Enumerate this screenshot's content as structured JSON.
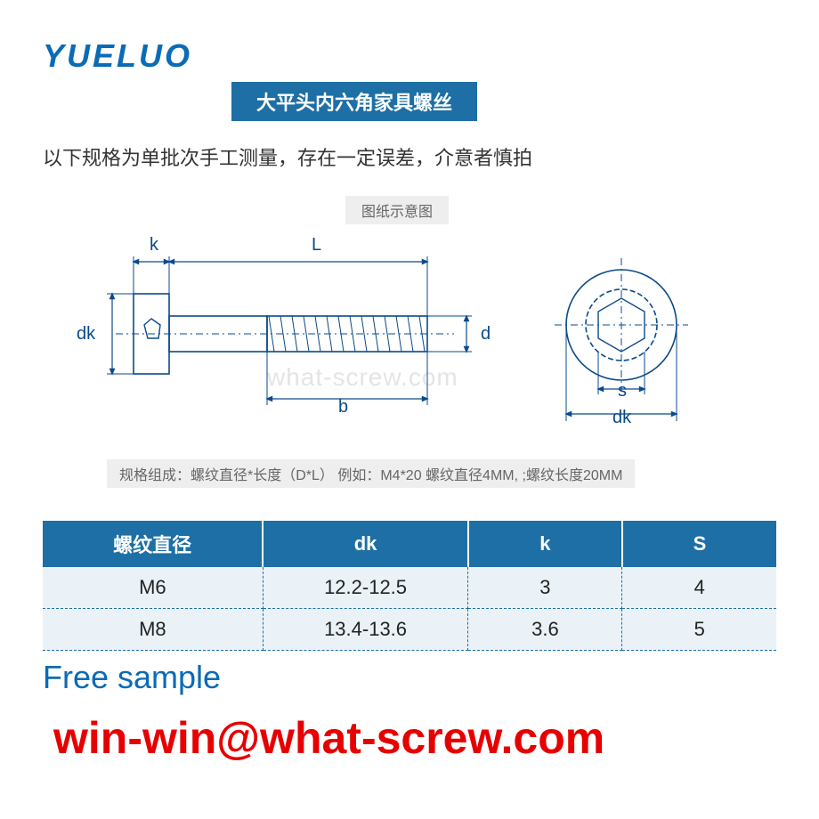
{
  "brand": {
    "logo_text": "YUELUO",
    "logo_color": "#0a6bb6"
  },
  "header": {
    "title": "大平头内六角家具螺丝",
    "title_bg": "#1d6fa5",
    "title_color": "#ffffff"
  },
  "disclaimer": {
    "text": "以下规格为单批次手工测量，存在一定误差，介意者慎拍",
    "color": "#333333"
  },
  "diagram": {
    "label": "图纸示意图",
    "label_bg": "#eeeeee",
    "label_color": "#666666",
    "line_color": "#0a4a8a",
    "dims": {
      "k": "k",
      "L": "L",
      "dk": "dk",
      "d": "d",
      "b": "b",
      "s": "s",
      "dk2": "dk"
    },
    "watermark": "what-screw.com",
    "watermark_color": "#888888"
  },
  "spec_note": {
    "text": "规格组成：螺纹直径*长度（D*L）  例如：M4*20 螺纹直径4MM, ;螺纹长度20MM",
    "bg": "#eeeeee",
    "color": "#666666"
  },
  "table": {
    "header_bg": "#1d6fa5",
    "header_color": "#ffffff",
    "body_bg": "#eaf2f7",
    "border_color": "#1d6fa5",
    "columns": [
      "螺纹直径",
      "dk",
      "k",
      "S"
    ],
    "col_widths": [
      "30%",
      "28%",
      "21%",
      "21%"
    ],
    "rows": [
      [
        "M6",
        "12.2-12.5",
        "3",
        "4"
      ],
      [
        "M8",
        "13.4-13.6",
        "3.6",
        "5"
      ]
    ]
  },
  "footer": {
    "free_sample": "Free sample",
    "free_sample_color": "#0a6bb6",
    "email": "win-win@what-screw.com",
    "email_color": "#e60000"
  },
  "colors": {
    "background": "#ffffff"
  }
}
